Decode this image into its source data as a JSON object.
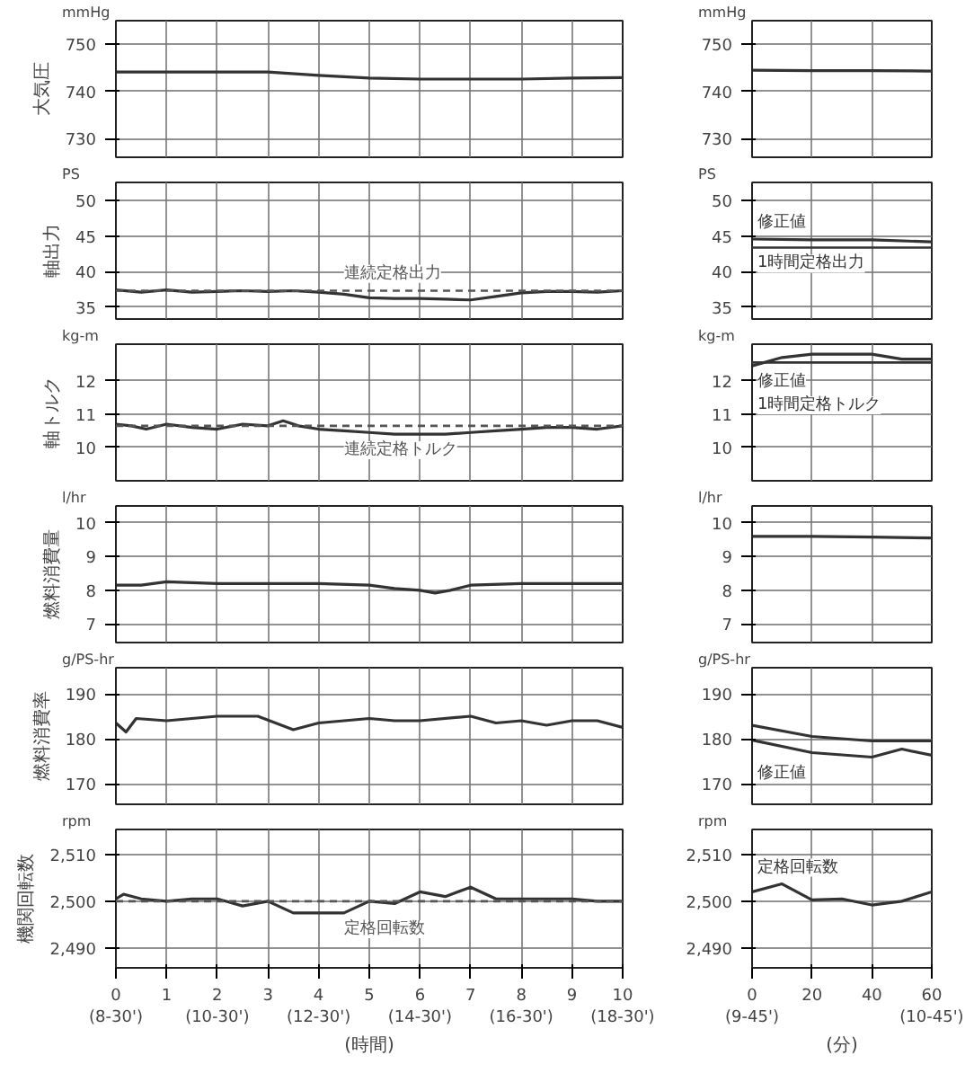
{
  "chart_data": [
    {
      "type": "line",
      "ylabel": "大気圧",
      "annotations": [
        "mmHg"
      ],
      "x": [
        0,
        1,
        2,
        3,
        4,
        5,
        6,
        7,
        8,
        9,
        10
      ],
      "values": [
        744.1,
        744.1,
        744.1,
        744.1,
        743.4,
        742.8,
        742.6,
        742.6,
        742.6,
        742.8,
        742.9
      ],
      "color": "#333333",
      "xlim": [
        0,
        10
      ],
      "xticks": [
        0,
        1,
        2,
        3,
        4,
        5,
        6,
        7,
        8,
        9,
        10
      ],
      "ylim": [
        726,
        755
      ],
      "yticks": [
        730,
        740,
        750
      ],
      "grid": true,
      "tick_labels": "y"
    },
    {
      "type": "line",
      "annotations": [
        "mmHg"
      ],
      "x": [
        0,
        20,
        40,
        60
      ],
      "values": [
        744.5,
        744.4,
        744.4,
        744.3
      ],
      "color": "#333333",
      "xlim": [
        0,
        60
      ],
      "xticks": [
        0,
        20,
        40,
        60
      ],
      "ylim": [
        726,
        755
      ],
      "yticks": [
        730,
        740,
        750
      ],
      "grid": true,
      "tick_labels": "y"
    },
    {
      "type": "line",
      "ylabel": "軸出力",
      "annotations": [
        "PS"
      ],
      "x": [
        0,
        0.5,
        1,
        1.5,
        2,
        2.5,
        3,
        3.5,
        4,
        4.5,
        5,
        5.5,
        6,
        6.5,
        7,
        7.5,
        8,
        8.5,
        9,
        9.5,
        10
      ],
      "values": [
        37.4,
        37.1,
        37.4,
        37.1,
        37.2,
        37.3,
        37.2,
        37.3,
        37.1,
        36.8,
        36.3,
        36.2,
        36.2,
        36.1,
        36.0,
        36.5,
        37.0,
        37.2,
        37.2,
        37.1,
        37.3
      ],
      "color": "#333333",
      "xlim": [
        0,
        10
      ],
      "xticks": [
        0,
        1,
        2,
        3,
        4,
        5,
        6,
        7,
        8,
        9,
        10
      ],
      "ylim": [
        33.3,
        52.6
      ],
      "yticks": [
        35,
        40,
        45,
        50
      ],
      "grid": true,
      "tick_labels": "y",
      "ref_lines": [
        {
          "axis": "y",
          "value": 37.3,
          "label": "連続定格出力",
          "line_style": "dashed",
          "color": "#555555"
        }
      ]
    },
    {
      "type": "line",
      "annotations": [
        "PS"
      ],
      "series": [
        {
          "name": "修正値",
          "color": "#333333",
          "x": [
            0,
            20,
            40,
            60
          ],
          "values": [
            44.6,
            44.5,
            44.5,
            44.2
          ]
        }
      ],
      "xlim": [
        0,
        60
      ],
      "xticks": [
        0,
        20,
        40,
        60
      ],
      "ylim": [
        33.3,
        52.6
      ],
      "yticks": [
        35,
        40,
        45,
        50
      ],
      "grid": true,
      "tick_labels": "y",
      "ref_lines": [
        {
          "axis": "y",
          "value": 43.4,
          "label": "1時間定格出力",
          "line_style": "solid",
          "color": "#333333"
        }
      ]
    },
    {
      "type": "line",
      "ylabel": "軸トルク",
      "annotations": [
        "kg-m"
      ],
      "x": [
        0,
        0.3,
        0.6,
        1,
        1.5,
        2,
        2.5,
        3,
        3.3,
        3.6,
        4,
        4.5,
        5,
        5.5,
        6,
        6.5,
        7,
        7.5,
        8,
        8.5,
        9,
        9.5,
        10
      ],
      "values": [
        10.7,
        10.65,
        10.55,
        10.7,
        10.6,
        10.55,
        10.7,
        10.65,
        10.8,
        10.65,
        10.55,
        10.5,
        10.45,
        10.4,
        10.4,
        10.4,
        10.45,
        10.5,
        10.55,
        10.6,
        10.6,
        10.55,
        10.65
      ],
      "color": "#333333",
      "xlim": [
        0,
        10
      ],
      "xticks": [
        0,
        1,
        2,
        3,
        4,
        5,
        6,
        7,
        8,
        9,
        10
      ],
      "ylim": [
        9.0,
        13.1
      ],
      "yticks": [
        10,
        11,
        12
      ],
      "grid": true,
      "tick_labels": "y",
      "ref_lines": [
        {
          "axis": "y",
          "value": 10.65,
          "label": "連続定格トルク",
          "line_style": "dashed",
          "color": "#555555"
        }
      ]
    },
    {
      "type": "line",
      "annotations": [
        "kg-m"
      ],
      "series": [
        {
          "name": "修正値",
          "color": "#333333",
          "x": [
            0,
            10,
            20,
            40,
            50,
            60
          ],
          "values": [
            12.45,
            12.7,
            12.8,
            12.8,
            12.65,
            12.65
          ]
        }
      ],
      "xlim": [
        0,
        60
      ],
      "xticks": [
        0,
        20,
        40,
        60
      ],
      "ylim": [
        9.0,
        13.1
      ],
      "yticks": [
        10,
        11,
        12
      ],
      "grid": true,
      "tick_labels": "y",
      "ref_lines": [
        {
          "axis": "y",
          "value": 12.55,
          "label": "1時間定格トルク",
          "line_style": "solid",
          "color": "#333333"
        }
      ]
    },
    {
      "type": "line",
      "ylabel": "燃料消費量",
      "annotations": [
        "l/hr"
      ],
      "x": [
        0,
        0.5,
        1,
        2,
        3,
        4,
        5,
        5.5,
        6,
        6.3,
        6.6,
        7,
        8,
        9,
        10
      ],
      "values": [
        8.15,
        8.15,
        8.25,
        8.2,
        8.2,
        8.2,
        8.15,
        8.05,
        8.0,
        7.92,
        8.0,
        8.15,
        8.2,
        8.2,
        8.2
      ],
      "color": "#333333",
      "xlim": [
        0,
        10
      ],
      "xticks": [
        0,
        1,
        2,
        3,
        4,
        5,
        6,
        7,
        8,
        9,
        10
      ],
      "ylim": [
        6.45,
        10.5
      ],
      "yticks": [
        7,
        8,
        9,
        10
      ],
      "grid": true,
      "tick_labels": "y"
    },
    {
      "type": "line",
      "annotations": [
        "l/hr"
      ],
      "x": [
        0,
        20,
        40,
        60
      ],
      "values": [
        9.6,
        9.6,
        9.58,
        9.55
      ],
      "color": "#333333",
      "xlim": [
        0,
        60
      ],
      "xticks": [
        0,
        20,
        40,
        60
      ],
      "ylim": [
        6.45,
        10.5
      ],
      "yticks": [
        7,
        8,
        9,
        10
      ],
      "grid": true,
      "tick_labels": "y"
    },
    {
      "type": "line",
      "ylabel": "燃料消費率",
      "annotations": [
        "g/PS-hr"
      ],
      "x": [
        0,
        0.2,
        0.4,
        1,
        1.5,
        2,
        2.8,
        3.5,
        4,
        5,
        5.5,
        6,
        7,
        7.5,
        8,
        8.5,
        9,
        9.5,
        10
      ],
      "values": [
        183.5,
        181.5,
        184.5,
        184,
        184.5,
        185,
        185,
        182,
        183.5,
        184.5,
        184,
        184,
        185,
        183.5,
        184,
        183,
        184,
        184,
        182.5
      ],
      "color": "#333333",
      "xlim": [
        0,
        10
      ],
      "xticks": [
        0,
        1,
        2,
        3,
        4,
        5,
        6,
        7,
        8,
        9,
        10
      ],
      "ylim": [
        165.4,
        195.8
      ],
      "yticks": [
        170,
        180,
        190
      ],
      "grid": true,
      "tick_labels": "y"
    },
    {
      "type": "line",
      "annotations": [
        "g/PS-hr"
      ],
      "series": [
        {
          "color": "#333333",
          "x": [
            0,
            20,
            40,
            60
          ],
          "values": [
            183,
            180.5,
            179.5,
            179.5
          ]
        },
        {
          "name": "修正値",
          "color": "#333333",
          "x": [
            0,
            20,
            40,
            50,
            60
          ],
          "values": [
            179.7,
            176.9,
            175.9,
            177.7,
            176.3
          ]
        }
      ],
      "xlim": [
        0,
        60
      ],
      "xticks": [
        0,
        20,
        40,
        60
      ],
      "ylim": [
        165.4,
        195.8
      ],
      "yticks": [
        170,
        180,
        190
      ],
      "grid": true,
      "tick_labels": "y"
    },
    {
      "type": "line",
      "ylabel": "機関回転数",
      "annotations": [
        "rpm"
      ],
      "x": [
        0,
        0.15,
        0.5,
        1,
        1.5,
        2,
        2.5,
        3,
        3.5,
        4,
        4.5,
        5,
        5.5,
        6,
        6.5,
        7,
        7.5,
        8,
        9,
        9.5,
        10
      ],
      "values": [
        2500.5,
        2501.5,
        2500.5,
        2500,
        2500.5,
        2500.5,
        2499,
        2500,
        2497.5,
        2497.5,
        2497.5,
        2500,
        2499.5,
        2502,
        2501,
        2503,
        2500.5,
        2500.5,
        2500.5,
        2500,
        2500
      ],
      "color": "#333333",
      "xlim": [
        0,
        10
      ],
      "xticks": [
        {
          "value": 0,
          "label": "0\n(8-30')"
        },
        1,
        {
          "value": 2,
          "label": "2\n(10-30')"
        },
        3,
        {
          "value": 4,
          "label": "4\n(12-30')"
        },
        5,
        {
          "value": 6,
          "label": "6\n(14-30')"
        },
        7,
        {
          "value": 8,
          "label": "8\n(16-30')"
        },
        9,
        {
          "value": 10,
          "label": "10\n(18-30')"
        }
      ],
      "xlabel": "(時間)",
      "ylim": [
        2485.8,
        2515.3
      ],
      "yticks": [
        {
          "value": 2490,
          "label": "2,490"
        },
        {
          "value": 2500,
          "label": "2,500"
        },
        {
          "value": 2510,
          "label": "2,510"
        }
      ],
      "grid": true,
      "ref_lines": [
        {
          "axis": "y",
          "value": 2500,
          "label": "定格回転数",
          "line_style": "dashed",
          "color": "#555555"
        }
      ]
    },
    {
      "type": "line",
      "annotations": [
        "rpm"
      ],
      "series": [
        {
          "name": "定格回転数",
          "color": "#333333",
          "x": [
            0,
            10,
            20,
            30,
            40,
            50,
            60
          ],
          "values": [
            2502,
            2503.7,
            2500.3,
            2500.5,
            2499.2,
            2500,
            2502
          ]
        }
      ],
      "xlim": [
        0,
        60
      ],
      "xticks": [
        {
          "value": 0,
          "label": "0\n(9-45')"
        },
        20,
        40,
        {
          "value": 60,
          "label": "60\n(10-45')"
        }
      ],
      "xlabel": "(分)",
      "ylim": [
        2485.8,
        2515.3
      ],
      "yticks": [
        {
          "value": 2490,
          "label": "2,490"
        },
        {
          "value": 2500,
          "label": "2,500"
        },
        {
          "value": 2510,
          "label": "2,510"
        }
      ],
      "grid": true
    }
  ]
}
